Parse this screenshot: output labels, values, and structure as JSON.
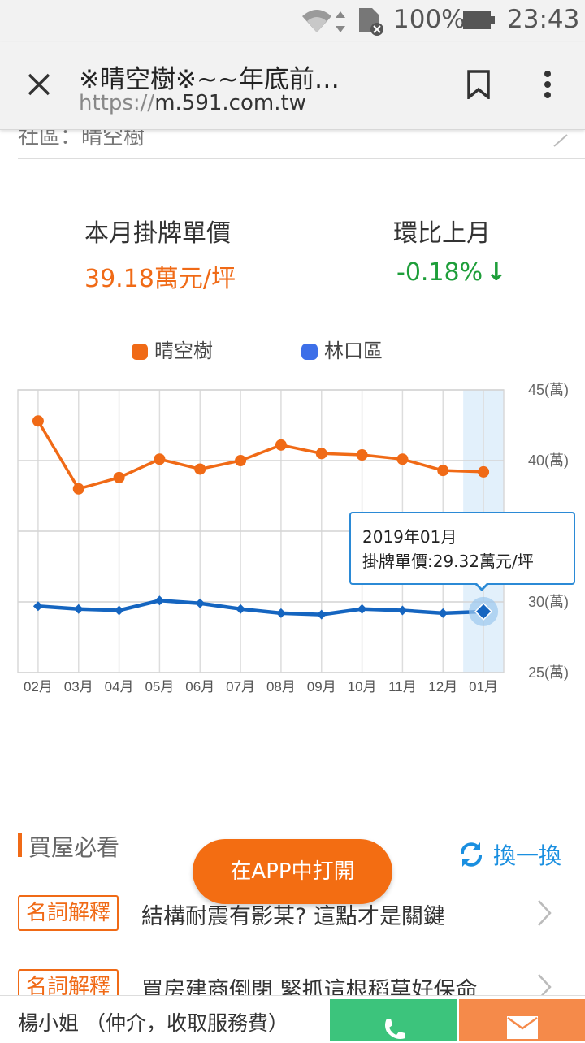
{
  "status_bar": {
    "battery": "100%",
    "time": "23:43"
  },
  "browser": {
    "page_title": "※晴空樹※~~年底前…",
    "url_protocol": "https://",
    "url_host": "m.591.com.tw"
  },
  "prev_row": {
    "text": "社區：晴空樹"
  },
  "stats": {
    "price_label": "本月掛牌單價",
    "price_value": "39.18萬元/坪",
    "change_label": "環比上月",
    "change_value": "-0.18%",
    "change_arrow": "↓"
  },
  "colors": {
    "series_1": "#f06a16",
    "series_2": "#1565c0",
    "change": "#1e9e3a",
    "accent": "#1a8fe0"
  },
  "chart_data": {
    "type": "line",
    "categories": [
      "02月",
      "03月",
      "04月",
      "05月",
      "06月",
      "07月",
      "08月",
      "09月",
      "10月",
      "11月",
      "12月",
      "01月"
    ],
    "series": [
      {
        "name": "晴空樹",
        "marker": "circle",
        "values": [
          42.8,
          38.0,
          38.8,
          40.1,
          39.4,
          40.0,
          41.1,
          40.5,
          40.4,
          40.1,
          39.3,
          39.2
        ]
      },
      {
        "name": "林口區",
        "marker": "diamond",
        "values": [
          29.7,
          29.5,
          29.4,
          30.1,
          29.9,
          29.5,
          29.2,
          29.1,
          29.5,
          29.4,
          29.2,
          29.32
        ]
      }
    ],
    "y_ticks": [
      "45(萬)",
      "40(萬)",
      "35(萬)",
      "30(萬)",
      "25(萬)"
    ],
    "ylim": [
      25,
      45
    ],
    "highlighted_category": "01月",
    "grid": true,
    "legend": "top-center"
  },
  "tooltip": {
    "line1": "2019年01月",
    "line2": "掛牌單價:29.32萬元/坪"
  },
  "section": {
    "title": "買屋必看",
    "refresh_label": "換一換",
    "items": [
      {
        "tag": "名詞解釋",
        "title": "結構耐震有影某? 這點才是關鍵"
      },
      {
        "tag": "名詞解釋",
        "title": "買房建商倒閉 緊抓這根稻草好保命"
      }
    ]
  },
  "open_app_label": "在APP中打開",
  "bottom_bar": {
    "agent": "楊小姐 （仲介，收取服務費）"
  }
}
